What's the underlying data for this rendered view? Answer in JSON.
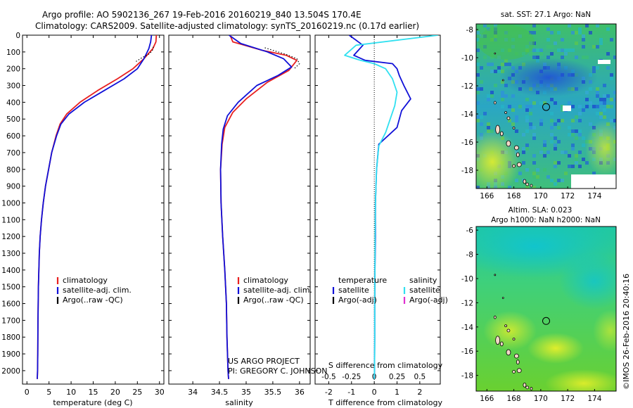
{
  "header": {
    "line1": "Argo profile: AO 5902136_267 19-Feb-2016 20160219_840 13.504S 170.4E",
    "line2": "Climatology: CARS2009. Satellite-adjusted climatology: synTS_20160219.nc (0.17d earlier)"
  },
  "credits": {
    "project": "US ARGO PROJECT",
    "pi": "PI: GREGORY C. JOHNSON",
    "stamp": "©IMOS 26-Feb-2016 20:40:16"
  },
  "colors": {
    "climatology": "#e82020",
    "satellite": "#1010d8",
    "argo": "#000000",
    "salinity_sat": "#30e0f0",
    "salinity_argo": "#e030d0"
  },
  "chart_data": [
    {
      "type": "line",
      "id": "temperature",
      "xlabel": "temperature (deg C)",
      "xlim": [
        -1,
        31
      ],
      "xticks": [
        0,
        5,
        10,
        15,
        20,
        25,
        30
      ],
      "ylim": [
        0,
        2080
      ],
      "yticks": [
        0,
        100,
        200,
        300,
        400,
        500,
        600,
        700,
        800,
        900,
        1000,
        1100,
        1200,
        1300,
        1400,
        1500,
        1600,
        1700,
        1800,
        1900,
        2000
      ],
      "legend": [
        {
          "label": "climatology",
          "color": "#e82020"
        },
        {
          "label": "satellite-adj. clim.",
          "color": "#1010d8"
        },
        {
          "label": "Argo(..raw -QC)",
          "color": "#000000"
        }
      ],
      "series": [
        {
          "name": "climatology",
          "color": "#e82020",
          "x": [
            29.3,
            29.2,
            28.5,
            26.5,
            24.0,
            20.5,
            16.0,
            12.0,
            9.0,
            7.5,
            6.6,
            5.6,
            4.9,
            4.2,
            3.7,
            3.3,
            3.0,
            2.8,
            2.6,
            2.5,
            2.45,
            2.4,
            2.35
          ],
          "y": [
            0,
            40,
            80,
            140,
            200,
            260,
            330,
            400,
            470,
            530,
            600,
            700,
            800,
            900,
            1000,
            1100,
            1200,
            1300,
            1500,
            1700,
            1900,
            2000,
            2050
          ]
        },
        {
          "name": "satellite-adj. clim.",
          "color": "#1010d8",
          "x": [
            28.2,
            28.0,
            27.6,
            26.5,
            25.0,
            22.0,
            17.5,
            13.0,
            9.5,
            7.7,
            6.7,
            5.6,
            4.9,
            4.2,
            3.7,
            3.3,
            3.0,
            2.8,
            2.6,
            2.5,
            2.45,
            2.4,
            2.35
          ],
          "y": [
            0,
            40,
            80,
            140,
            200,
            260,
            330,
            400,
            470,
            530,
            600,
            700,
            800,
            900,
            1000,
            1100,
            1200,
            1300,
            1500,
            1700,
            1900,
            2000,
            2050
          ]
        },
        {
          "name": "Argo(..raw -QC)",
          "color": "#000000",
          "dotted": true,
          "x": [
            28.6,
            28.4,
            27.8,
            26.0,
            24.5
          ],
          "y": [
            70,
            90,
            110,
            135,
            160
          ]
        }
      ]
    },
    {
      "type": "line",
      "id": "salinity",
      "xlabel": "salinity",
      "xlim": [
        33.55,
        36.2
      ],
      "xticks": [
        34,
        34.5,
        35,
        35.5,
        36
      ],
      "ylim": [
        0,
        2080
      ],
      "legend": [
        {
          "label": "climatology",
          "color": "#e82020"
        },
        {
          "label": "satellite-adj. clim.",
          "color": "#1010d8"
        },
        {
          "label": "Argo(..raw -QC)",
          "color": "#000000"
        }
      ],
      "series": [
        {
          "name": "climatology",
          "color": "#e82020",
          "x": [
            34.7,
            34.75,
            35.3,
            35.75,
            35.95,
            35.8,
            35.4,
            35.0,
            34.75,
            34.6,
            34.55,
            34.52,
            34.53,
            34.56,
            34.6,
            34.63,
            34.64,
            34.66,
            34.67
          ],
          "y": [
            0,
            40,
            90,
            120,
            150,
            210,
            280,
            380,
            460,
            550,
            650,
            800,
            1000,
            1200,
            1400,
            1600,
            1800,
            2000,
            2050
          ]
        },
        {
          "name": "satellite-adj. clim.",
          "color": "#1010d8",
          "x": [
            34.68,
            34.9,
            35.4,
            35.7,
            35.85,
            35.6,
            35.2,
            34.85,
            34.65,
            34.57,
            34.54,
            34.52,
            34.53,
            34.56,
            34.6,
            34.63,
            34.64,
            34.66,
            34.67
          ],
          "y": [
            0,
            50,
            100,
            140,
            190,
            240,
            300,
            400,
            480,
            560,
            650,
            800,
            1000,
            1200,
            1400,
            1600,
            1800,
            2000,
            2050
          ]
        },
        {
          "name": "Argo(..raw -QC)",
          "color": "#000000",
          "dotted": true,
          "x": [
            35.35,
            35.55,
            35.75,
            35.95,
            36.0,
            35.9
          ],
          "y": [
            75,
            95,
            115,
            140,
            170,
            200
          ]
        }
      ]
    },
    {
      "type": "line",
      "id": "difference",
      "xlabel": "T difference from climatology",
      "xlabel_top": "S difference from climatology",
      "xlim": [
        -2.6,
        2.9
      ],
      "xticks": [
        -2,
        -1,
        0,
        1,
        2
      ],
      "xticks_s": [
        {
          "v": -2,
          "label": "-0.5"
        },
        {
          "v": -1,
          "label": "-0.25"
        },
        {
          "v": 0,
          "label": "0"
        },
        {
          "v": 1,
          "label": "0.25"
        },
        {
          "v": 2,
          "label": "0.5"
        }
      ],
      "ylim": [
        0,
        2080
      ],
      "legend_left_title": "temperature",
      "legend_right_title": "salinity",
      "legend_left": [
        {
          "label": "satellite",
          "color": "#1010d8"
        },
        {
          "label": "Argo(-adj)",
          "color": "#000000"
        }
      ],
      "legend_right": [
        {
          "label": "satellite",
          "color": "#30e0f0"
        },
        {
          "label": "Argo(-adj)",
          "color": "#e030d0"
        }
      ],
      "series": [
        {
          "name": "T satellite",
          "color": "#1010d8",
          "x": [
            -1.1,
            -0.5,
            -0.9,
            -0.4,
            0.8,
            1.0,
            1.1,
            1.3,
            1.6,
            1.2,
            1.0,
            0.2,
            0.1,
            0.05,
            0.05,
            0.03,
            0.02,
            0.02,
            0.01,
            0.0
          ],
          "y": [
            0,
            60,
            120,
            150,
            170,
            200,
            240,
            300,
            380,
            450,
            550,
            650,
            800,
            1000,
            1200,
            1400,
            1600,
            1800,
            2000,
            2050
          ]
        },
        {
          "name": "S satellite",
          "color": "#30e0f0",
          "x": [
            2.8,
            -0.8,
            -1.3,
            -0.6,
            0.0,
            0.5,
            0.8,
            1.0,
            0.9,
            0.7,
            0.5,
            0.2,
            0.1,
            0.05,
            0.04,
            0.03,
            0.02,
            0.02,
            0.01,
            0.0
          ],
          "y": [
            0,
            60,
            120,
            150,
            170,
            200,
            260,
            340,
            420,
            500,
            580,
            660,
            800,
            1000,
            1200,
            1400,
            1600,
            1800,
            2000,
            2050
          ]
        }
      ]
    },
    {
      "type": "heatmap",
      "id": "sst_map",
      "title": "sat. SST: 27.1  Argo: NaN",
      "xlim": [
        165.2,
        175.6
      ],
      "ylim": [
        -19.3,
        -7.6
      ],
      "xticks": [
        166,
        168,
        170,
        172,
        174
      ],
      "yticks": [
        -8,
        -10,
        -12,
        -14,
        -16,
        -18
      ],
      "marker": {
        "lon": 170.4,
        "lat": -13.504
      }
    },
    {
      "type": "heatmap",
      "id": "sla_map",
      "title": "Altim. SLA: 0.023",
      "subtitle": "Argo h1000: NaN h2000: NaN",
      "xlim": [
        165.2,
        175.6
      ],
      "ylim": [
        -19.3,
        -5.7
      ],
      "xticks": [
        166,
        168,
        170,
        172,
        174
      ],
      "yticks": [
        -6,
        -8,
        -10,
        -12,
        -14,
        -16,
        -18
      ],
      "marker": {
        "lon": 170.4,
        "lat": -13.504
      }
    }
  ]
}
